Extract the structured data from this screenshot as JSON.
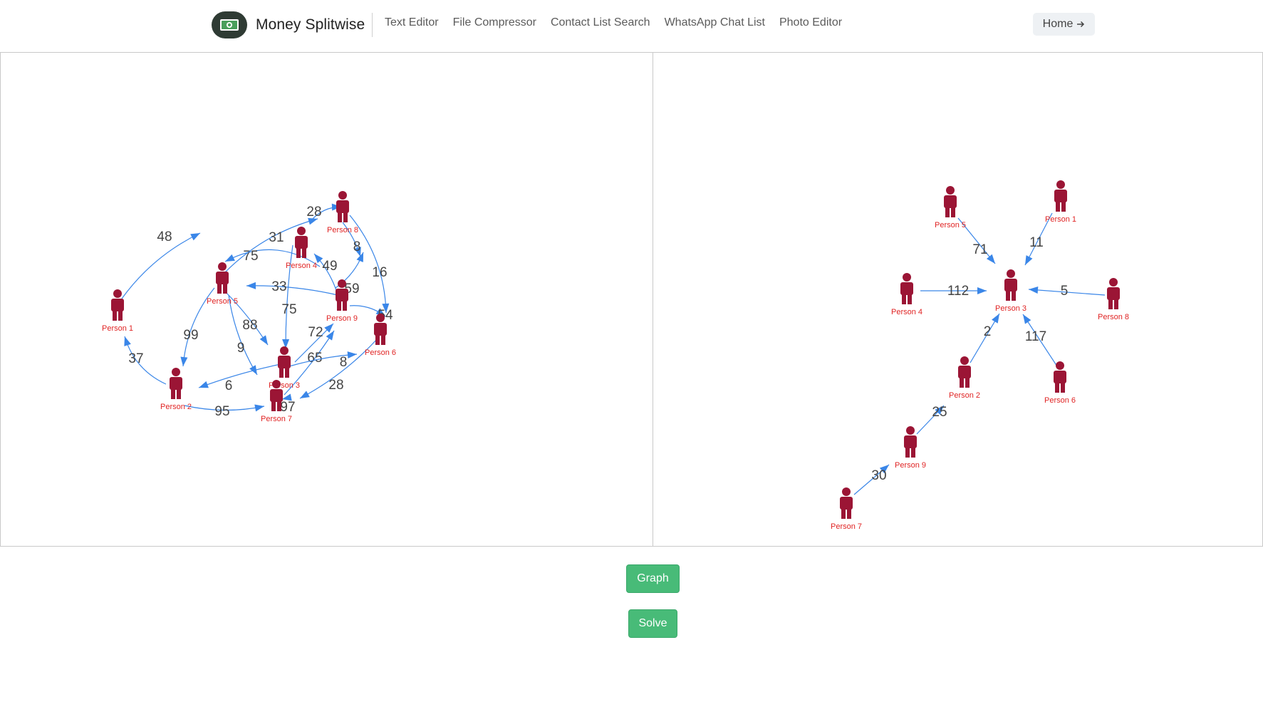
{
  "app": {
    "brand": "Money Splitwise",
    "icon": "money-icon",
    "colors": {
      "accent": "#48bb78",
      "person": "#9b1535",
      "edge": "#3a86e8",
      "node_label": "#e02424"
    }
  },
  "nav": {
    "links": [
      "Text Editor",
      "File Compressor",
      "Contact List Search",
      "WhatsApp Chat List",
      "Photo Editor"
    ],
    "home": "Home",
    "home_icon": "arrow-right-icon"
  },
  "left_graph": {
    "nodes": [
      "Person 1",
      "Person 2",
      "Person 3",
      "Person 4",
      "Person 5",
      "Person 6",
      "Person 7",
      "Person 8",
      "Person 9"
    ],
    "edge_labels": [
      "48",
      "37",
      "99",
      "95",
      "75",
      "31",
      "28",
      "8",
      "16",
      "49",
      "59",
      "33",
      "54",
      "88",
      "9",
      "75",
      "72",
      "65",
      "6",
      "8",
      "28",
      "97"
    ]
  },
  "right_graph": {
    "nodes": [
      "Person 5",
      "Person 1",
      "Person 4",
      "Person 3",
      "Person 8",
      "Person 2",
      "Person 6",
      "Person 9",
      "Person 7"
    ],
    "edge_labels": [
      "71",
      "11",
      "112",
      "5",
      "2",
      "117",
      "25",
      "30"
    ]
  },
  "buttons": {
    "graph": "Graph",
    "solve": "Solve"
  }
}
